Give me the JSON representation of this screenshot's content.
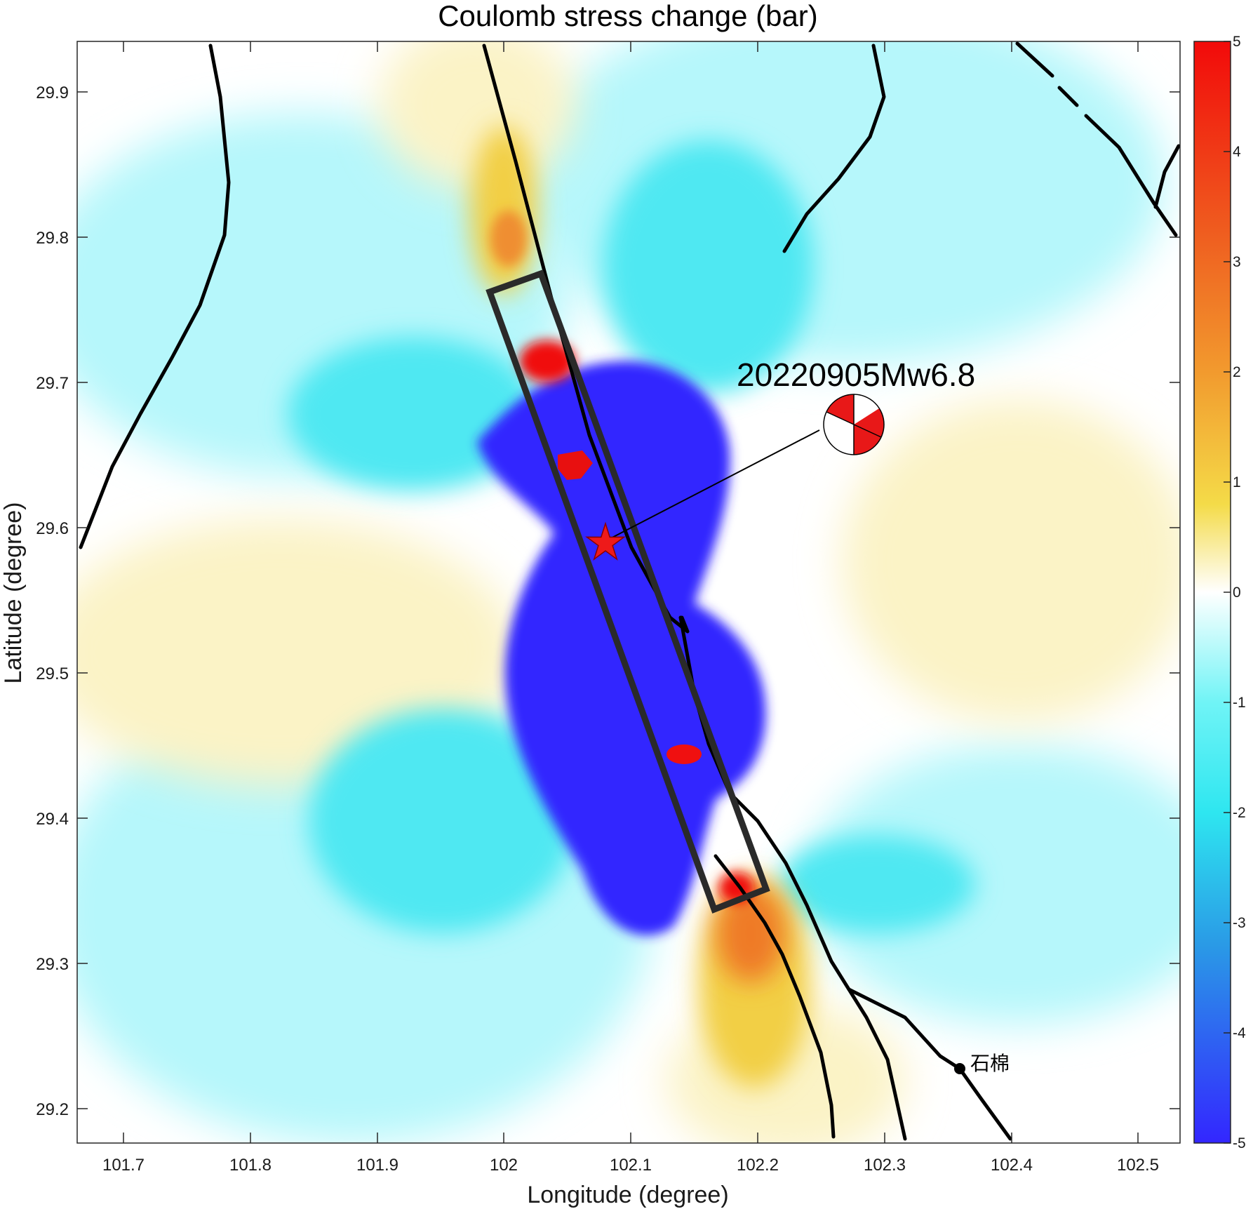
{
  "title": "Coulomb stress change (bar)",
  "xlabel": "Longitude (degree)",
  "ylabel": "Latitude  (degree)",
  "x_ticks": [
    "101.7",
    "101.8",
    "101.9",
    "102",
    "102.1",
    "102.2",
    "102.3",
    "102.4",
    "102.5"
  ],
  "y_ticks": [
    "29.9",
    "29.8",
    "29.7",
    "29.6",
    "29.5",
    "29.4",
    "29.3",
    "29.2"
  ],
  "colorbar": {
    "ticks": [
      "5",
      "4",
      "3",
      "2",
      "1",
      "0",
      "-1",
      "-2",
      "-3",
      "-4",
      "-5"
    ],
    "range": [
      -5,
      5
    ],
    "colors": [
      "#3326ff",
      "#1f8fe6",
      "#3ef0f5",
      "#ffffff",
      "#f2e35a",
      "#f29a2e",
      "#f01010"
    ]
  },
  "event_label": "20220905Mw6.8",
  "epicenter": {
    "lon": 102.08,
    "lat": 29.59
  },
  "town_label": "石棉",
  "colors": {
    "negative": "#3326ff",
    "positive": "#f01010",
    "fault_line": "#000000",
    "rupture_box": "#2a2a2a"
  }
}
